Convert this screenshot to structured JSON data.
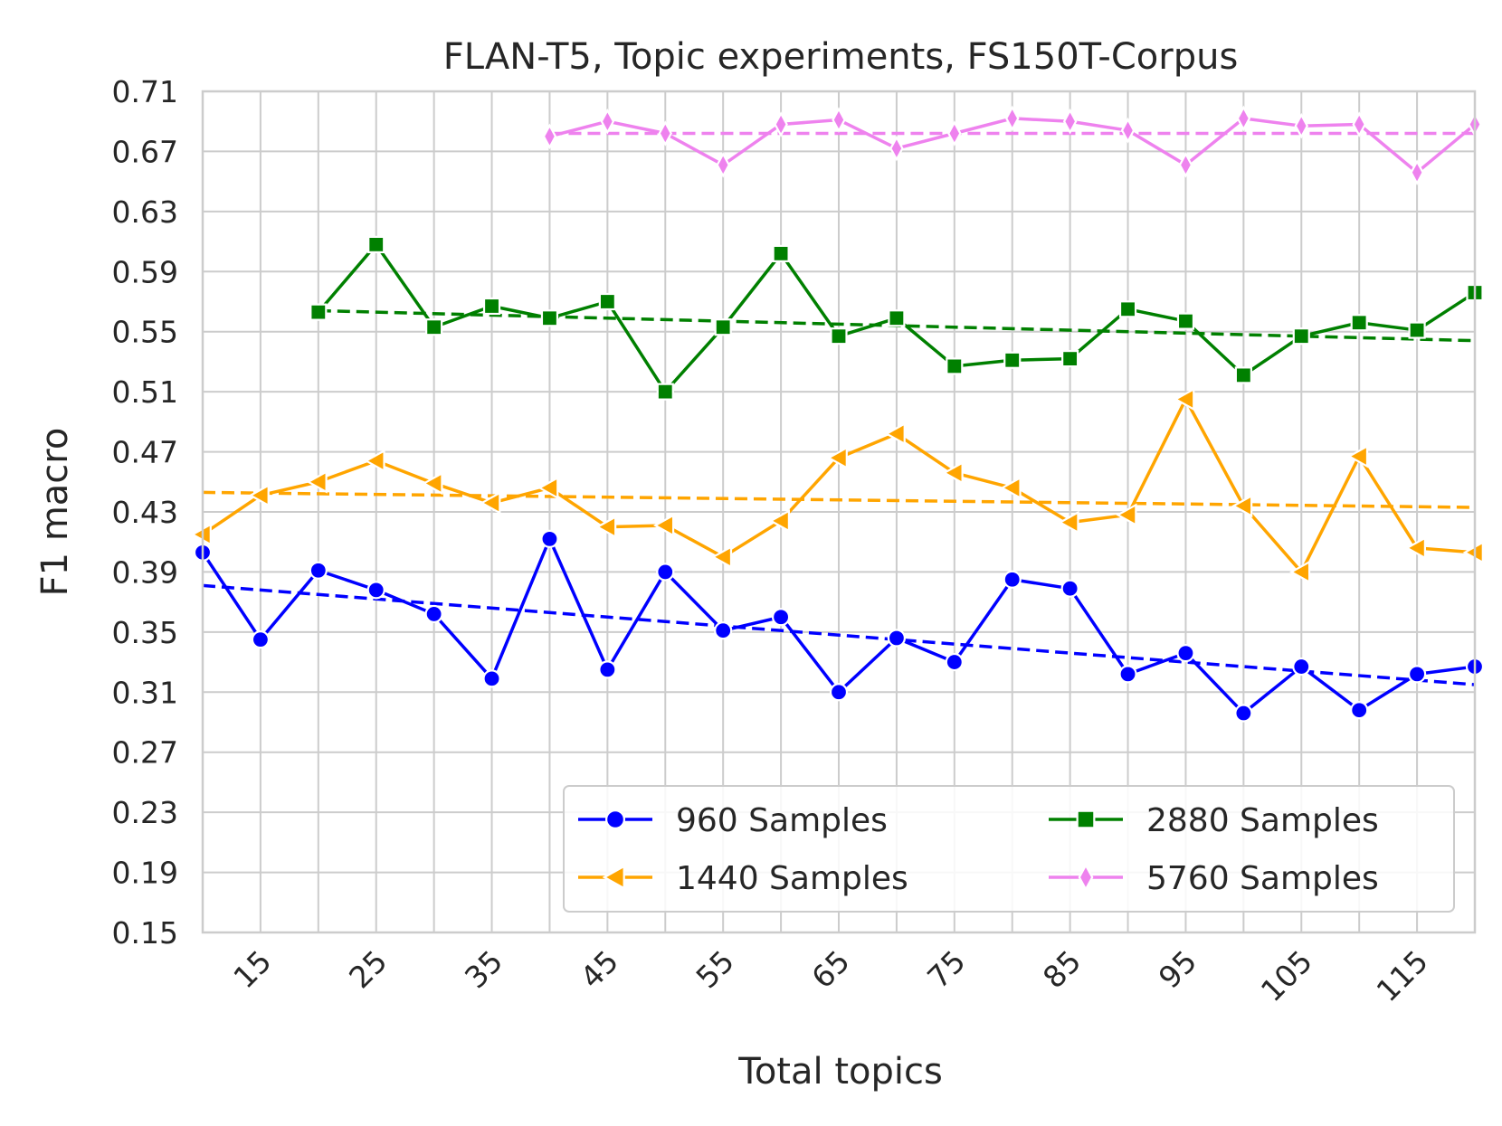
{
  "chart_data": {
    "type": "line",
    "title": "FLAN-T5, Topic experiments, FS150T-Corpus",
    "xlabel": "Total topics",
    "ylabel": "F1 macro",
    "xlim": [
      10,
      120
    ],
    "ylim": [
      0.15,
      0.71
    ],
    "x_ticks": [
      15,
      25,
      35,
      45,
      55,
      65,
      75,
      85,
      95,
      105,
      115
    ],
    "x_grid": [
      10,
      15,
      20,
      25,
      30,
      35,
      40,
      45,
      50,
      55,
      60,
      65,
      70,
      75,
      80,
      85,
      90,
      95,
      100,
      105,
      110,
      115,
      120
    ],
    "y_ticks": [
      0.15,
      0.19,
      0.23,
      0.27,
      0.31,
      0.35,
      0.39,
      0.43,
      0.47,
      0.51,
      0.55,
      0.59,
      0.63,
      0.67,
      0.71
    ],
    "grid": true,
    "legend_position": "lower-right",
    "legend_columns": 2,
    "series": [
      {
        "name": "960 Samples",
        "color": "#0000ff",
        "marker": "circle",
        "x": [
          10,
          15,
          20,
          25,
          30,
          35,
          40,
          45,
          50,
          55,
          60,
          65,
          70,
          75,
          80,
          85,
          90,
          95,
          100,
          105,
          110,
          115,
          120
        ],
        "values": [
          0.403,
          0.345,
          0.391,
          0.378,
          0.362,
          0.319,
          0.412,
          0.325,
          0.39,
          0.351,
          0.36,
          0.31,
          0.346,
          0.33,
          0.385,
          0.379,
          0.322,
          0.336,
          0.296,
          0.327,
          0.298,
          0.322,
          0.327
        ],
        "trend": [
          0.381,
          0.315
        ]
      },
      {
        "name": "1440 Samples",
        "color": "#ffa500",
        "marker": "triangle-left",
        "x": [
          10,
          15,
          20,
          25,
          30,
          35,
          40,
          45,
          50,
          55,
          60,
          65,
          70,
          75,
          80,
          85,
          90,
          95,
          100,
          105,
          110,
          115,
          120
        ],
        "values": [
          0.415,
          0.441,
          0.45,
          0.464,
          0.449,
          0.436,
          0.446,
          0.42,
          0.421,
          0.4,
          0.424,
          0.466,
          0.482,
          0.456,
          0.446,
          0.423,
          0.428,
          0.505,
          0.434,
          0.39,
          0.467,
          0.406,
          0.403
        ],
        "trend": [
          0.443,
          0.433
        ]
      },
      {
        "name": "2880 Samples",
        "color": "#008000",
        "marker": "square",
        "x": [
          20,
          25,
          30,
          35,
          40,
          45,
          50,
          55,
          60,
          65,
          70,
          75,
          80,
          85,
          90,
          95,
          100,
          105,
          110,
          115,
          120
        ],
        "values": [
          0.563,
          0.608,
          0.553,
          0.567,
          0.559,
          0.57,
          0.51,
          0.553,
          0.602,
          0.547,
          0.559,
          0.527,
          0.531,
          0.532,
          0.565,
          0.557,
          0.521,
          0.547,
          0.556,
          0.551,
          0.576
        ],
        "trend": [
          0.564,
          0.544
        ]
      },
      {
        "name": "5760 Samples",
        "color": "#ee82ee",
        "marker": "thin-diamond",
        "x": [
          40,
          45,
          50,
          55,
          60,
          65,
          70,
          75,
          80,
          85,
          90,
          95,
          100,
          105,
          110,
          115,
          120
        ],
        "values": [
          0.68,
          0.69,
          0.682,
          0.661,
          0.688,
          0.691,
          0.672,
          0.682,
          0.692,
          0.69,
          0.684,
          0.661,
          0.692,
          0.687,
          0.688,
          0.656,
          0.688
        ],
        "trend": [
          0.682,
          0.682
        ]
      }
    ]
  }
}
